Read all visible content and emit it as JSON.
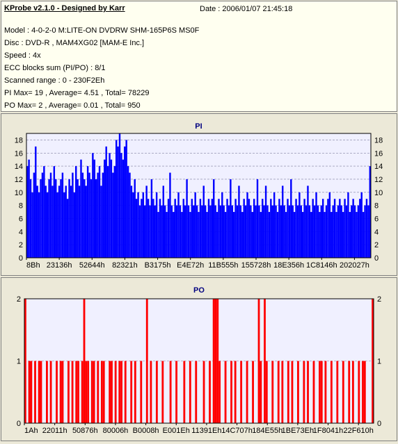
{
  "info": {
    "title": "KProbe v2.1.0 - Designed by Karr",
    "date": "Date : 2006/01/07 21:45:18",
    "lines": [
      "Model : 4-0-2-0 M:LITE-ON DVDRW SHM-165P6S MS0F",
      "Disc : DVD-R , MAM4XG02 [MAM-E Inc.]",
      "Speed : 4x",
      "ECC blocks sum (PI/PO) : 8/1",
      "Scanned range : 0 - 230F2Eh",
      "PI Max= 19 , Average= 4.51 , Total= 78229",
      "PO Max= 2 , Average= 0.01 , Total= 950"
    ]
  },
  "colors": {
    "pi": "#0000ff",
    "po": "#ff0000",
    "plot_bg": "#f0f0ff",
    "title": "#000080"
  },
  "chart_data": [
    {
      "type": "bar",
      "title": "PI",
      "xlabel": "",
      "ylabel": "",
      "ylim": [
        0,
        19
      ],
      "yticks": [
        0,
        2,
        4,
        6,
        8,
        10,
        12,
        14,
        16,
        18
      ],
      "xticks": [
        "8Bh",
        "23136h",
        "52644h",
        "82321h",
        "B3175h",
        "E4E72h",
        "11B555h",
        "155728h",
        "18E356h",
        "1C8146h",
        "202027h"
      ],
      "grid": true,
      "series": [
        {
          "name": "PI",
          "color": "#0000ff",
          "values": [
            14,
            15,
            12,
            10,
            13,
            17,
            11,
            10,
            12,
            13,
            14,
            11,
            10,
            12,
            13,
            11,
            14,
            12,
            10,
            11,
            12,
            13,
            10,
            11,
            9,
            12,
            11,
            13,
            10,
            14,
            12,
            11,
            15,
            13,
            12,
            11,
            14,
            13,
            12,
            16,
            15,
            12,
            13,
            14,
            11,
            13,
            15,
            17,
            14,
            16,
            15,
            13,
            14,
            18,
            17,
            19,
            16,
            15,
            17,
            18,
            14,
            13,
            11,
            10,
            12,
            9,
            10,
            8,
            9,
            10,
            8,
            11,
            9,
            8,
            12,
            9,
            8,
            10,
            7,
            9,
            8,
            11,
            8,
            7,
            9,
            13,
            8,
            7,
            9,
            8,
            10,
            8,
            7,
            9,
            8,
            12,
            8,
            7,
            9,
            8,
            10,
            8,
            7,
            9,
            8,
            11,
            8,
            7,
            9,
            8,
            9,
            12,
            8,
            7,
            9,
            8,
            10,
            8,
            7,
            9,
            8,
            12,
            8,
            7,
            9,
            8,
            11,
            8,
            7,
            9,
            8,
            10,
            9,
            8,
            7,
            9,
            8,
            12,
            8,
            7,
            9,
            8,
            11,
            8,
            7,
            9,
            8,
            10,
            8,
            7,
            9,
            8,
            11,
            8,
            7,
            9,
            8,
            12,
            8,
            7,
            9,
            8,
            10,
            8,
            7,
            9,
            8,
            11,
            8,
            7,
            9,
            8,
            10,
            8,
            7,
            8,
            9,
            7,
            8,
            9,
            10,
            7,
            8,
            9,
            7,
            8,
            9,
            8,
            7,
            9,
            8,
            10,
            7,
            8,
            9,
            8,
            7,
            8,
            9,
            10,
            7,
            8,
            9,
            8,
            14
          ]
        }
      ]
    },
    {
      "type": "bar",
      "title": "PO",
      "xlabel": "",
      "ylabel": "",
      "ylim": [
        0,
        2
      ],
      "yticks": [
        0,
        1,
        2
      ],
      "xticks": [
        "1Ah",
        "22011h",
        "50876h",
        "80006h",
        "B0008h",
        "E001Eh",
        "11391Eh",
        "14C707h",
        "184E55h",
        "1BE73Eh",
        "1F8041h",
        "22F610h"
      ],
      "grid": true,
      "series": [
        {
          "name": "PO",
          "color": "#ff0000",
          "values": [
            2,
            0,
            1,
            1,
            0,
            1,
            0,
            1,
            1,
            0,
            0,
            1,
            0,
            1,
            0,
            0,
            1,
            0,
            1,
            1,
            0,
            0,
            1,
            0,
            1,
            0,
            1,
            1,
            0,
            1,
            2,
            1,
            1,
            0,
            1,
            1,
            0,
            1,
            0,
            1,
            1,
            0,
            0,
            1,
            1,
            0,
            1,
            0,
            1,
            1,
            0,
            1,
            0,
            0,
            1,
            0,
            1,
            0,
            0,
            1,
            0,
            0,
            2,
            0,
            1,
            0,
            0,
            1,
            0,
            0,
            1,
            0,
            0,
            0,
            1,
            0,
            0,
            1,
            0,
            0,
            0,
            1,
            0,
            0,
            1,
            0,
            0,
            1,
            0,
            0,
            0,
            1,
            0,
            0,
            1,
            0,
            2,
            2,
            2,
            1,
            0,
            0,
            1,
            0,
            0,
            1,
            0,
            1,
            0,
            0,
            1,
            0,
            0,
            1,
            0,
            0,
            1,
            0,
            0,
            2,
            1,
            0,
            2,
            1,
            0,
            0,
            1,
            0,
            0,
            1,
            0,
            1,
            0,
            0,
            1,
            0,
            1,
            0,
            0,
            1,
            0,
            0,
            1,
            0,
            1,
            0,
            0,
            1,
            0,
            0,
            1,
            1,
            0,
            1,
            0,
            0,
            1,
            0,
            0,
            1,
            0,
            0,
            1,
            0,
            0,
            1,
            0,
            1,
            0,
            0,
            1,
            0,
            1,
            1,
            0,
            0,
            0,
            2
          ]
        }
      ]
    }
  ]
}
